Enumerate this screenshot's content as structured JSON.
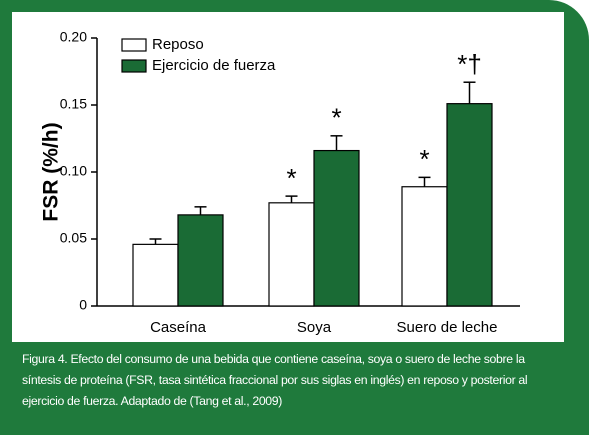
{
  "chart_data": {
    "type": "bar",
    "y_label": "FSR (%/h)",
    "categories": [
      "Caseína",
      "Soya",
      "Suero de leche"
    ],
    "series": [
      {
        "name": "Reposo",
        "color": "#ffffff",
        "values": [
          0.046,
          0.077,
          0.089
        ],
        "errors": [
          0.004,
          0.005,
          0.007
        ],
        "markers": [
          null,
          "*",
          "*"
        ]
      },
      {
        "name": "Ejercicio de fuerza",
        "color": "#1a6b35",
        "values": [
          0.068,
          0.116,
          0.151
        ],
        "errors": [
          0.006,
          0.011,
          0.016
        ],
        "markers": [
          null,
          "*",
          "*†"
        ]
      }
    ],
    "ylim": [
      0,
      0.2
    ],
    "yticks": [
      0,
      {
        "value": 0.05,
        "label": "0.05"
      },
      {
        "value": 0.1,
        "label": "0.10"
      },
      {
        "value": 0.15,
        "label": "0.15"
      },
      {
        "value": 0.2,
        "label": "0.20"
      }
    ],
    "legend": "top-left"
  },
  "caption": "Figura 4. Efecto del consumo de una bebida que contiene caseína, soya o suero de leche sobre la síntesis de proteína (FSR, tasa sintética fraccional por sus siglas en inglés) en reposo y posterior al ejercicio de fuerza. Adaptado de (Tang et al., 2009)"
}
